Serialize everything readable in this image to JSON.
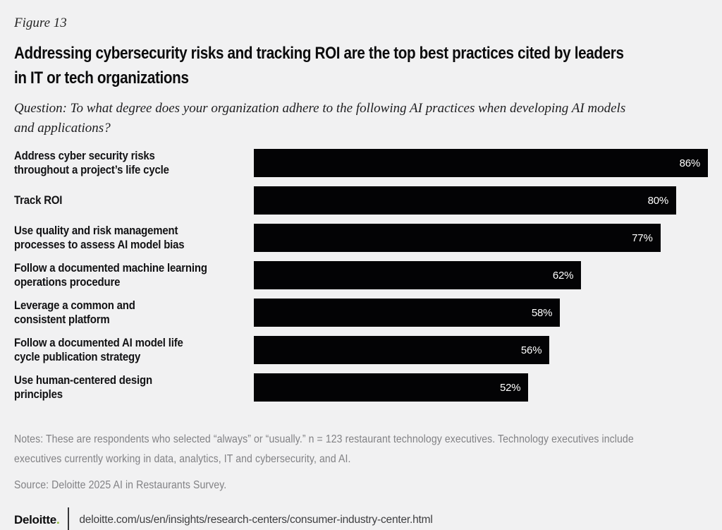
{
  "figure_label": "Figure 13",
  "title": "Addressing cybersecurity risks and tracking ROI are the top best practices cited by leaders\nin IT or tech organizations",
  "question": "Question: To what degree does your organization adhere to the following AI practices when developing AI models\nand applications?",
  "chart_data": {
    "type": "bar",
    "orientation": "horizontal",
    "categories": [
      "Address cyber security risks\nthroughout a project’s life cycle",
      "Track ROI",
      "Use quality and risk management\nprocesses to assess AI model bias",
      "Follow a documented machine learning\noperations procedure",
      "Leverage a common and\nconsistent platform",
      "Follow a documented AI model life\ncycle publication strategy",
      "Use human-centered design\nprinciples"
    ],
    "values": [
      86,
      80,
      77,
      62,
      58,
      56,
      52
    ],
    "value_suffix": "%",
    "xlim": [
      0,
      100
    ],
    "bar_color": "#030305",
    "value_label_color": "#ffffff",
    "grid": false,
    "legend": false
  },
  "notes": "Notes: These are respondents who selected “always” or “usually.” n = 123 restaurant technology executives. Technology executives include\nexecutives currently working in data, analytics, IT and cybersecurity, and AI.",
  "source": "Source: Deloitte 2025 AI in Restaurants Survey.",
  "footer": {
    "brand": "Deloitte",
    "brand_dot": ".",
    "url": "deloitte.com/us/en/insights/research-centers/consumer-industry-center.html"
  },
  "colors": {
    "background": "#f1f1f2",
    "bar": "#030305",
    "accent_green": "#86bc25",
    "muted_text": "#818184"
  }
}
